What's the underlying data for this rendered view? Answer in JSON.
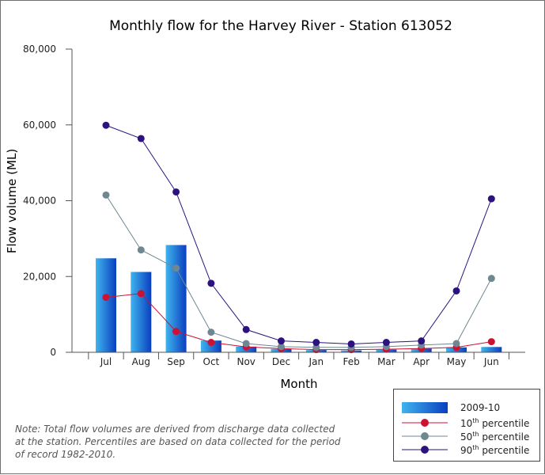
{
  "chart_data": {
    "type": "bar",
    "title": "Monthly flow for the Harvey River - Station 613052",
    "xlabel": "Month",
    "ylabel": "Flow volume (ML)",
    "ylim": [
      0,
      80000
    ],
    "yticks": [
      "0",
      "20,000",
      "40,000",
      "60,000",
      "80,000"
    ],
    "ytick_values": [
      0,
      20000,
      40000,
      60000,
      80000
    ],
    "grid": false,
    "legend_position": "bottom-right",
    "categories": [
      "Jul",
      "Aug",
      "Sep",
      "Oct",
      "Nov",
      "Dec",
      "Jan",
      "Feb",
      "Mar",
      "Apr",
      "May",
      "Jun"
    ],
    "bars": {
      "name": "2009-10",
      "values": [
        24800,
        21200,
        28300,
        3100,
        1500,
        900,
        600,
        500,
        700,
        1000,
        1300,
        1400
      ]
    },
    "series": [
      {
        "name": "10th percentile",
        "name_parts": [
          "10",
          "th",
          " percentile"
        ],
        "color": "#cc1133",
        "values": [
          14500,
          15500,
          5500,
          2600,
          1400,
          1000,
          700,
          700,
          800,
          1000,
          1300,
          2800
        ]
      },
      {
        "name": "50th percentile",
        "name_parts": [
          "50",
          "th",
          " percentile"
        ],
        "color": "#6f8790",
        "values": [
          41500,
          27000,
          22200,
          5300,
          2300,
          1500,
          1300,
          1300,
          1500,
          1900,
          2300,
          19500
        ]
      },
      {
        "name": "90th percentile",
        "name_parts": [
          "90",
          "th",
          " percentile"
        ],
        "color": "#2b127f",
        "values": [
          59900,
          56400,
          42300,
          18200,
          6000,
          3000,
          2600,
          2200,
          2600,
          3000,
          16200,
          40500
        ]
      }
    ]
  },
  "note": "Note: Total flow volumes are derived from discharge data collected at the station. Percentiles are based on data collected for the period of record 1982-2010.",
  "colors": {
    "bar_light": "#3fb4ee",
    "bar_dark": "#0a3fbf",
    "axis": "#555555"
  }
}
